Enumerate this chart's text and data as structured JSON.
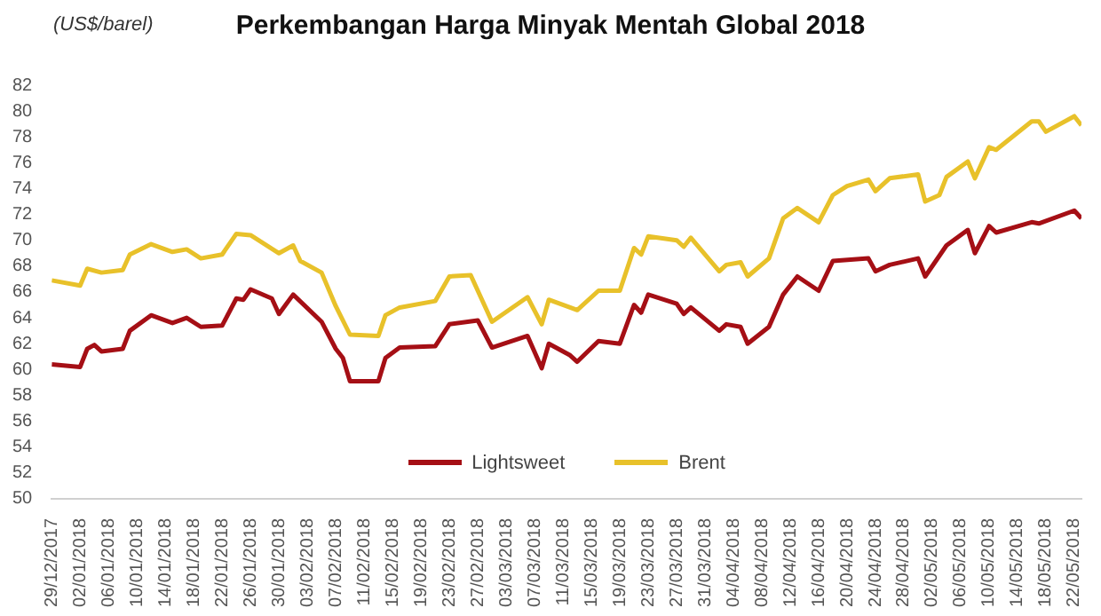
{
  "chart_data": {
    "type": "line",
    "title": "Perkembangan Harga Minyak Mentah Global 2018",
    "ylabel": "(US$/barel)",
    "xlim": [
      "2017-12-29",
      "2018-05-23"
    ],
    "xticks": [
      {
        "value": "2017-12-29",
        "label": "29/12/2017"
      },
      {
        "value": "2018-01-02",
        "label": "02/01/2018"
      },
      {
        "value": "2018-01-06",
        "label": "06/01/2018"
      },
      {
        "value": "2018-01-10",
        "label": "10/01/2018"
      },
      {
        "value": "2018-01-14",
        "label": "14/01/2018"
      },
      {
        "value": "2018-01-18",
        "label": "18/01/2018"
      },
      {
        "value": "2018-01-22",
        "label": "22/01/2018"
      },
      {
        "value": "2018-01-26",
        "label": "26/01/2018"
      },
      {
        "value": "2018-01-30",
        "label": "30/01/2018"
      },
      {
        "value": "2018-02-03",
        "label": "03/02/2018"
      },
      {
        "value": "2018-02-07",
        "label": "07/02/2018"
      },
      {
        "value": "2018-02-11",
        "label": "11/02/2018"
      },
      {
        "value": "2018-02-15",
        "label": "15/02/2018"
      },
      {
        "value": "2018-02-19",
        "label": "19/02/2018"
      },
      {
        "value": "2018-02-23",
        "label": "23/02/2018"
      },
      {
        "value": "2018-02-27",
        "label": "27/02/2018"
      },
      {
        "value": "2018-03-03",
        "label": "03/03/2018"
      },
      {
        "value": "2018-03-07",
        "label": "07/03/2018"
      },
      {
        "value": "2018-03-11",
        "label": "11/03/2018"
      },
      {
        "value": "2018-03-15",
        "label": "15/03/2018"
      },
      {
        "value": "2018-03-19",
        "label": "19/03/2018"
      },
      {
        "value": "2018-03-23",
        "label": "23/03/2018"
      },
      {
        "value": "2018-03-27",
        "label": "27/03/2018"
      },
      {
        "value": "2018-03-31",
        "label": "31/03/2018"
      },
      {
        "value": "2018-04-04",
        "label": "04/04/2018"
      },
      {
        "value": "2018-04-08",
        "label": "08/04/2018"
      },
      {
        "value": "2018-04-12",
        "label": "12/04/2018"
      },
      {
        "value": "2018-04-16",
        "label": "16/04/2018"
      },
      {
        "value": "2018-04-20",
        "label": "20/04/2018"
      },
      {
        "value": "2018-04-24",
        "label": "24/04/2018"
      },
      {
        "value": "2018-04-28",
        "label": "28/04/2018"
      },
      {
        "value": "2018-05-02",
        "label": "02/05/2018"
      },
      {
        "value": "2018-05-06",
        "label": "06/05/2018"
      },
      {
        "value": "2018-05-10",
        "label": "10/05/2018"
      },
      {
        "value": "2018-05-14",
        "label": "14/05/2018"
      },
      {
        "value": "2018-05-18",
        "label": "18/05/2018"
      },
      {
        "value": "2018-05-22",
        "label": "22/05/2018"
      }
    ],
    "ylim": [
      50,
      82
    ],
    "yticks": [
      50,
      52,
      54,
      56,
      58,
      60,
      62,
      64,
      66,
      68,
      70,
      72,
      74,
      76,
      78,
      80,
      82
    ],
    "grid": false,
    "legend": "bottom",
    "marker": "none",
    "line_style": "solid",
    "series": [
      {
        "name": "Lightsweet",
        "color": "#a50f15",
        "x": [
          "2017-12-29",
          "2018-01-02",
          "2018-01-03",
          "2018-01-04",
          "2018-01-05",
          "2018-01-08",
          "2018-01-09",
          "2018-01-12",
          "2018-01-15",
          "2018-01-17",
          "2018-01-19",
          "2018-01-22",
          "2018-01-24",
          "2018-01-25",
          "2018-01-26",
          "2018-01-29",
          "2018-01-30",
          "2018-02-01",
          "2018-02-05",
          "2018-02-07",
          "2018-02-08",
          "2018-02-09",
          "2018-02-13",
          "2018-02-14",
          "2018-02-16",
          "2018-02-21",
          "2018-02-23",
          "2018-02-27",
          "2018-03-01",
          "2018-03-06",
          "2018-03-08",
          "2018-03-09",
          "2018-03-12",
          "2018-03-13",
          "2018-03-16",
          "2018-03-19",
          "2018-03-21",
          "2018-03-22",
          "2018-03-23",
          "2018-03-27",
          "2018-03-28",
          "2018-03-29",
          "2018-04-02",
          "2018-04-03",
          "2018-04-05",
          "2018-04-06",
          "2018-04-09",
          "2018-04-11",
          "2018-04-13",
          "2018-04-16",
          "2018-04-18",
          "2018-04-23",
          "2018-04-24",
          "2018-04-26",
          "2018-04-30",
          "2018-05-01",
          "2018-05-04",
          "2018-05-07",
          "2018-05-08",
          "2018-05-10",
          "2018-05-11",
          "2018-05-16",
          "2018-05-17",
          "2018-05-22",
          "2018-05-23"
        ],
        "values": [
          60.4,
          60.2,
          61.6,
          61.9,
          61.4,
          61.6,
          63.0,
          64.2,
          63.6,
          64.0,
          63.3,
          63.4,
          65.5,
          65.4,
          66.2,
          65.5,
          64.3,
          65.8,
          63.7,
          61.6,
          60.9,
          59.1,
          59.1,
          60.9,
          61.7,
          61.8,
          63.5,
          63.8,
          61.7,
          62.6,
          60.1,
          62.0,
          61.1,
          60.6,
          62.2,
          62.0,
          65.0,
          64.4,
          65.8,
          65.1,
          64.3,
          64.8,
          63.0,
          63.5,
          63.3,
          62.0,
          63.3,
          65.8,
          67.2,
          66.1,
          68.4,
          68.6,
          67.6,
          68.1,
          68.6,
          67.2,
          69.6,
          70.8,
          69.0,
          71.1,
          70.6,
          71.4,
          71.3,
          72.3,
          71.7
        ]
      },
      {
        "name": "Brent",
        "color": "#e8c12a",
        "x": [
          "2017-12-29",
          "2018-01-02",
          "2018-01-03",
          "2018-01-05",
          "2018-01-08",
          "2018-01-09",
          "2018-01-12",
          "2018-01-15",
          "2018-01-17",
          "2018-01-19",
          "2018-01-22",
          "2018-01-24",
          "2018-01-26",
          "2018-01-30",
          "2018-02-01",
          "2018-02-02",
          "2018-02-05",
          "2018-02-07",
          "2018-02-09",
          "2018-02-13",
          "2018-02-14",
          "2018-02-16",
          "2018-02-21",
          "2018-02-23",
          "2018-02-26",
          "2018-03-01",
          "2018-03-06",
          "2018-03-08",
          "2018-03-09",
          "2018-03-12",
          "2018-03-13",
          "2018-03-16",
          "2018-03-19",
          "2018-03-21",
          "2018-03-22",
          "2018-03-23",
          "2018-03-27",
          "2018-03-28",
          "2018-03-29",
          "2018-04-02",
          "2018-04-03",
          "2018-04-05",
          "2018-04-06",
          "2018-04-09",
          "2018-04-11",
          "2018-04-13",
          "2018-04-16",
          "2018-04-18",
          "2018-04-20",
          "2018-04-23",
          "2018-04-24",
          "2018-04-26",
          "2018-04-30",
          "2018-05-01",
          "2018-05-03",
          "2018-05-04",
          "2018-05-07",
          "2018-05-08",
          "2018-05-10",
          "2018-05-11",
          "2018-05-16",
          "2018-05-17",
          "2018-05-18",
          "2018-05-22",
          "2018-05-23"
        ],
        "values": [
          66.9,
          66.5,
          67.8,
          67.5,
          67.7,
          68.9,
          69.7,
          69.1,
          69.3,
          68.6,
          68.9,
          70.5,
          70.4,
          69.0,
          69.6,
          68.4,
          67.5,
          64.9,
          62.7,
          62.6,
          64.2,
          64.8,
          65.3,
          67.2,
          67.3,
          63.7,
          65.6,
          63.5,
          65.4,
          64.8,
          64.6,
          66.1,
          66.1,
          69.4,
          68.9,
          70.3,
          70.0,
          69.5,
          70.2,
          67.6,
          68.1,
          68.3,
          67.2,
          68.6,
          71.7,
          72.5,
          71.4,
          73.5,
          74.2,
          74.7,
          73.8,
          74.8,
          75.1,
          73.0,
          73.5,
          74.9,
          76.1,
          74.8,
          77.2,
          77.0,
          79.2,
          79.2,
          78.4,
          79.6,
          78.9
        ]
      }
    ]
  }
}
